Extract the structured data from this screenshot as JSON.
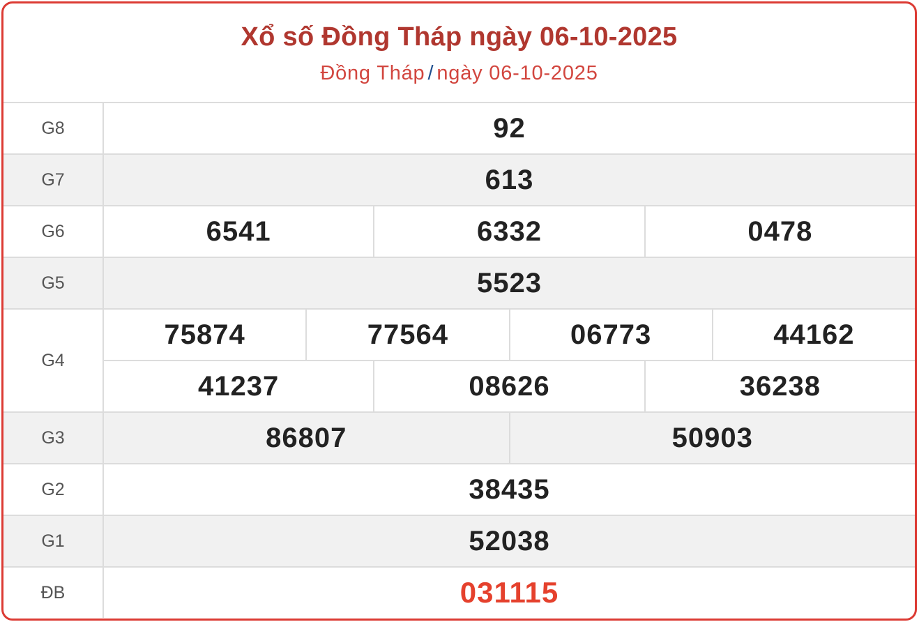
{
  "header": {
    "title": "Xổ số Đồng Tháp ngày 06-10-2025",
    "breadcrumb_province": "Đồng Tháp",
    "breadcrumb_separator": "/",
    "breadcrumb_date": "ngày 06-10-2025"
  },
  "prizes": [
    {
      "label": "G8",
      "lines": [
        [
          "92"
        ]
      ]
    },
    {
      "label": "G7",
      "lines": [
        [
          "613"
        ]
      ]
    },
    {
      "label": "G6",
      "lines": [
        [
          "6541",
          "6332",
          "0478"
        ]
      ]
    },
    {
      "label": "G5",
      "lines": [
        [
          "5523"
        ]
      ]
    },
    {
      "label": "G4",
      "lines": [
        [
          "75874",
          "77564",
          "06773",
          "44162"
        ],
        [
          "41237",
          "08626",
          "36238"
        ]
      ]
    },
    {
      "label": "G3",
      "lines": [
        [
          "86807",
          "50903"
        ]
      ]
    },
    {
      "label": "G2",
      "lines": [
        [
          "38435"
        ]
      ]
    },
    {
      "label": "G1",
      "lines": [
        [
          "52038"
        ]
      ]
    },
    {
      "label": "ĐB",
      "lines": [
        [
          "031115"
        ]
      ]
    }
  ],
  "colors": {
    "border": "#dc3b34",
    "title": "#b0372f",
    "special": "#e5412d",
    "alt_row": "#f1f1f1"
  }
}
